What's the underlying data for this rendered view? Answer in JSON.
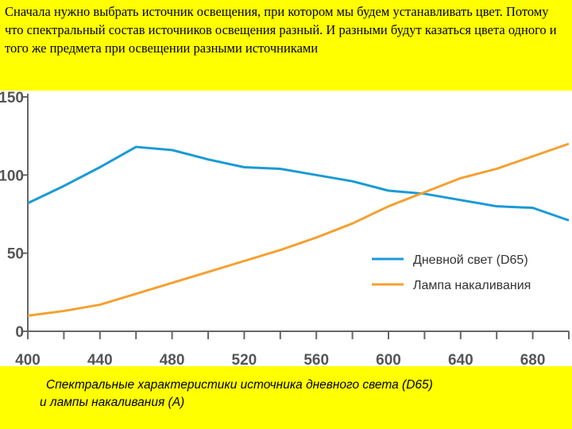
{
  "slide": {
    "header_text": "Сначала нужно выбрать источник освещения, при котором мы будем устанавливать цвет. Потому что спектральный состав источников освещения разный. И разными будут казаться цвета одного и того же предмета при освещении разными источниками",
    "caption_line1": "Спектральные характеристики источника дневного света (D65)",
    "caption_line2": "и лампы накаливания (A)"
  },
  "chart_data": {
    "type": "line",
    "x": [
      400,
      420,
      440,
      460,
      480,
      500,
      520,
      540,
      560,
      580,
      600,
      620,
      640,
      660,
      680,
      700
    ],
    "x_ticks": [
      "400",
      "440",
      "480",
      "520",
      "560",
      "600",
      "640",
      "680"
    ],
    "y_ticks": [
      "0",
      "50",
      "100",
      "150"
    ],
    "xlim": [
      400,
      700
    ],
    "ylim": [
      0,
      150
    ],
    "grid": false,
    "legend_position": "center-right",
    "series": [
      {
        "name": "Дневной свет (D65)",
        "color": "#1a9ad6",
        "values": [
          82,
          93,
          105,
          118,
          116,
          110,
          105,
          104,
          100,
          96,
          90,
          88,
          84,
          80,
          79,
          71
        ]
      },
      {
        "name": "Лампа накаливания",
        "color": "#f5a030",
        "values": [
          10,
          13,
          17,
          24,
          31,
          38,
          45,
          52,
          60,
          69,
          80,
          89,
          98,
          104,
          112,
          120
        ]
      }
    ]
  }
}
